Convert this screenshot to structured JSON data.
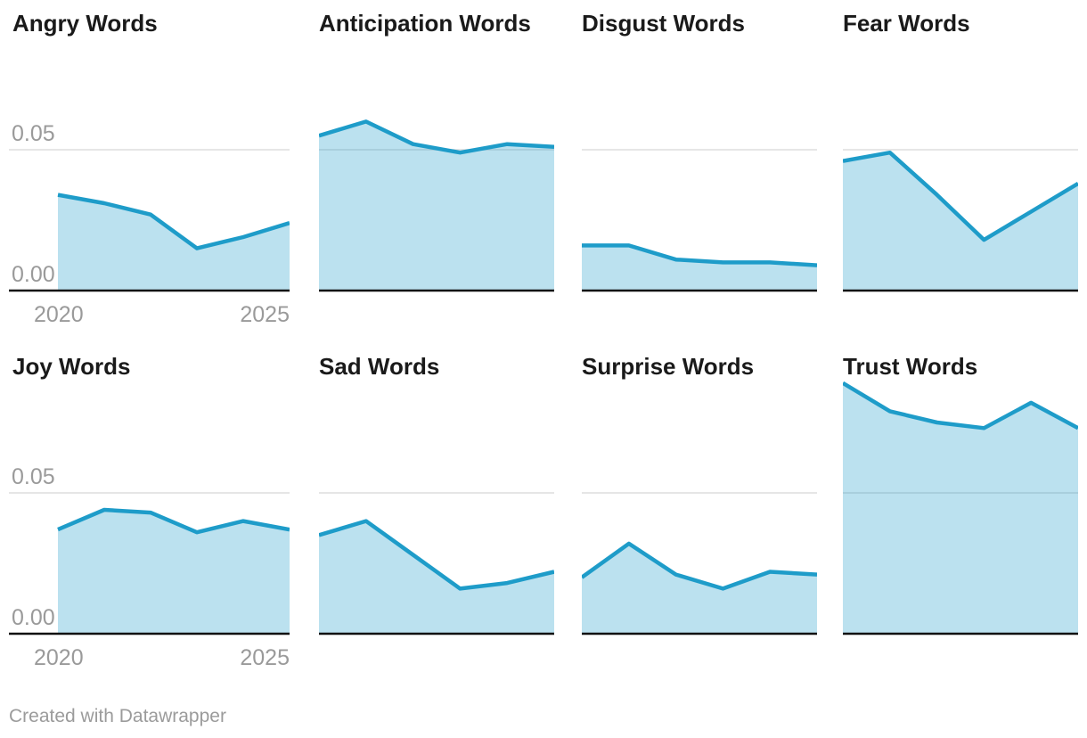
{
  "page": {
    "background": "#ffffff"
  },
  "colors": {
    "line": "#1e9cc9",
    "area_fill": "rgba(30,156,201,0.3)",
    "gridline": "#dddddd",
    "axis_line": "#111111",
    "tick_label": "#9a9a9a",
    "title_text": "#1a1a1a",
    "footer_text": "#9b9b9b"
  },
  "axis": {
    "y_upper_label": "0.05",
    "y_zero_label": "0.00",
    "x_first_label": "2020",
    "x_last_label": "2025"
  },
  "footer": {
    "text": "Created with Datawrapper"
  },
  "chart_data": [
    {
      "type": "area",
      "title": "Angry Words",
      "x": [
        2020,
        2021,
        2022,
        2023,
        2024,
        2025
      ],
      "values": [
        0.034,
        0.031,
        0.027,
        0.015,
        0.019,
        0.024
      ],
      "xlabel": "",
      "ylabel": "",
      "ylim": [
        0,
        0.09
      ],
      "gridlines": [
        0,
        0.05
      ],
      "y_tick_labels": [
        "0.00",
        "0.05"
      ],
      "x_tick_labels": [
        "2020",
        "2025"
      ],
      "legend": "none"
    },
    {
      "type": "area",
      "title": "Anticipation Words",
      "x": [
        2020,
        2021,
        2022,
        2023,
        2024,
        2025
      ],
      "values": [
        0.055,
        0.06,
        0.052,
        0.049,
        0.052,
        0.051
      ],
      "xlabel": "",
      "ylabel": "",
      "ylim": [
        0,
        0.09
      ],
      "gridlines": [
        0,
        0.05
      ],
      "y_tick_labels": [],
      "x_tick_labels": [],
      "legend": "none"
    },
    {
      "type": "area",
      "title": "Disgust Words",
      "x": [
        2020,
        2021,
        2022,
        2023,
        2024,
        2025
      ],
      "values": [
        0.016,
        0.016,
        0.011,
        0.01,
        0.01,
        0.009
      ],
      "xlabel": "",
      "ylabel": "",
      "ylim": [
        0,
        0.09
      ],
      "gridlines": [
        0,
        0.05
      ],
      "y_tick_labels": [],
      "x_tick_labels": [],
      "legend": "none"
    },
    {
      "type": "area",
      "title": "Fear Words",
      "x": [
        2020,
        2021,
        2022,
        2023,
        2024,
        2025
      ],
      "values": [
        0.046,
        0.049,
        0.034,
        0.018,
        0.028,
        0.038
      ],
      "xlabel": "",
      "ylabel": "",
      "ylim": [
        0,
        0.09
      ],
      "gridlines": [
        0,
        0.05
      ],
      "y_tick_labels": [],
      "x_tick_labels": [],
      "legend": "none"
    },
    {
      "type": "area",
      "title": "Joy Words",
      "x": [
        2020,
        2021,
        2022,
        2023,
        2024,
        2025
      ],
      "values": [
        0.037,
        0.044,
        0.043,
        0.036,
        0.04,
        0.037
      ],
      "xlabel": "",
      "ylabel": "",
      "ylim": [
        0,
        0.09
      ],
      "gridlines": [
        0,
        0.05
      ],
      "y_tick_labels": [
        "0.00",
        "0.05"
      ],
      "x_tick_labels": [
        "2020",
        "2025"
      ],
      "legend": "none"
    },
    {
      "type": "area",
      "title": "Sad Words",
      "x": [
        2020,
        2021,
        2022,
        2023,
        2024,
        2025
      ],
      "values": [
        0.035,
        0.04,
        0.028,
        0.016,
        0.018,
        0.022
      ],
      "xlabel": "",
      "ylabel": "",
      "ylim": [
        0,
        0.09
      ],
      "gridlines": [
        0,
        0.05
      ],
      "y_tick_labels": [],
      "x_tick_labels": [],
      "legend": "none"
    },
    {
      "type": "area",
      "title": "Surprise Words",
      "x": [
        2020,
        2021,
        2022,
        2023,
        2024,
        2025
      ],
      "values": [
        0.02,
        0.032,
        0.021,
        0.016,
        0.022,
        0.021
      ],
      "xlabel": "",
      "ylabel": "",
      "ylim": [
        0,
        0.09
      ],
      "gridlines": [
        0,
        0.05
      ],
      "y_tick_labels": [],
      "x_tick_labels": [],
      "legend": "none"
    },
    {
      "type": "area",
      "title": "Trust Words",
      "x": [
        2020,
        2021,
        2022,
        2023,
        2024,
        2025
      ],
      "values": [
        0.089,
        0.079,
        0.075,
        0.073,
        0.082,
        0.073
      ],
      "xlabel": "",
      "ylabel": "",
      "ylim": [
        0,
        0.09
      ],
      "gridlines": [
        0,
        0.05
      ],
      "y_tick_labels": [],
      "x_tick_labels": [],
      "legend": "none"
    }
  ]
}
